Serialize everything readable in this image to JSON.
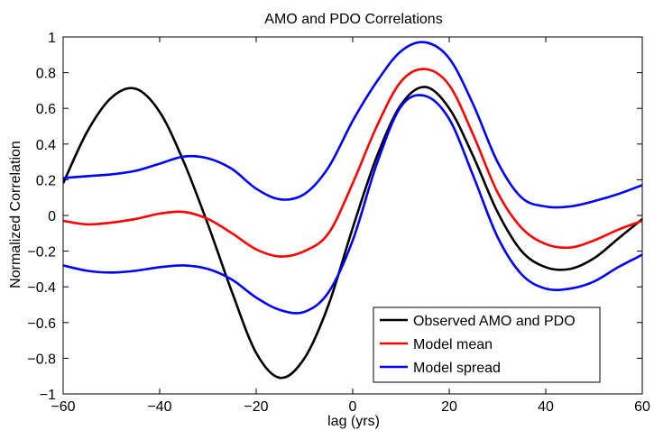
{
  "chart_data": {
    "type": "line",
    "title": "AMO and PDO Correlations",
    "xlabel": "lag (yrs)",
    "ylabel": "Normalized Correlation",
    "xlim": [
      -60,
      60
    ],
    "ylim": [
      -1,
      1
    ],
    "xticks": [
      -60,
      -40,
      -20,
      0,
      20,
      40,
      60
    ],
    "xtick_labels": [
      "−60",
      "−40",
      "−20",
      "0",
      "20",
      "40",
      "60"
    ],
    "yticks": [
      -1,
      -0.8,
      -0.6,
      -0.4,
      -0.2,
      0,
      0.2,
      0.4,
      0.6,
      0.8,
      1
    ],
    "ytick_labels": [
      "−1",
      "−0.8",
      "−0.6",
      "−0.4",
      "−0.2",
      "0",
      "0.2",
      "0.4",
      "0.6",
      "0.8",
      "1"
    ],
    "grid": false,
    "legend_position": "bottom-right",
    "legend": [
      {
        "label": "Observed AMO and PDO",
        "color": "#000000"
      },
      {
        "label": "Model mean",
        "color": "#ff0000"
      },
      {
        "label": "Model spread",
        "color": "#0000ff"
      }
    ],
    "series": [
      {
        "name": "Observed AMO and PDO",
        "color": "#000000",
        "x": [
          -60,
          -55,
          -50,
          -45,
          -40,
          -35,
          -30,
          -25,
          -20,
          -15,
          -10,
          -5,
          0,
          5,
          10,
          15,
          20,
          25,
          30,
          35,
          40,
          45,
          50,
          55,
          60
        ],
        "y": [
          0.18,
          0.47,
          0.66,
          0.71,
          0.58,
          0.3,
          -0.05,
          -0.43,
          -0.77,
          -0.91,
          -0.8,
          -0.5,
          -0.07,
          0.33,
          0.62,
          0.72,
          0.6,
          0.33,
          0.02,
          -0.2,
          -0.29,
          -0.3,
          -0.24,
          -0.13,
          -0.02
        ]
      },
      {
        "name": "Model mean",
        "color": "#ff0000",
        "x": [
          -60,
          -55,
          -50,
          -45,
          -40,
          -35,
          -30,
          -25,
          -20,
          -15,
          -10,
          -5,
          0,
          5,
          10,
          15,
          20,
          25,
          30,
          35,
          40,
          45,
          50,
          55,
          60
        ],
        "y": [
          -0.03,
          -0.05,
          -0.04,
          -0.02,
          0.01,
          0.02,
          -0.02,
          -0.1,
          -0.19,
          -0.23,
          -0.2,
          -0.1,
          0.18,
          0.5,
          0.75,
          0.82,
          0.73,
          0.45,
          0.13,
          -0.07,
          -0.16,
          -0.18,
          -0.14,
          -0.08,
          -0.03
        ]
      },
      {
        "name": "Model spread (upper)",
        "color": "#0000ff",
        "x": [
          -60,
          -55,
          -50,
          -45,
          -40,
          -35,
          -30,
          -25,
          -20,
          -15,
          -10,
          -5,
          0,
          5,
          10,
          15,
          20,
          25,
          30,
          35,
          40,
          45,
          50,
          55,
          60
        ],
        "y": [
          0.21,
          0.22,
          0.23,
          0.25,
          0.29,
          0.33,
          0.32,
          0.26,
          0.15,
          0.09,
          0.12,
          0.27,
          0.53,
          0.75,
          0.92,
          0.97,
          0.88,
          0.62,
          0.3,
          0.1,
          0.05,
          0.05,
          0.08,
          0.12,
          0.17
        ]
      },
      {
        "name": "Model spread (lower)",
        "color": "#0000ff",
        "x": [
          -60,
          -55,
          -50,
          -45,
          -40,
          -35,
          -30,
          -25,
          -20,
          -15,
          -10,
          -5,
          0,
          5,
          10,
          15,
          20,
          25,
          30,
          35,
          40,
          45,
          50,
          55,
          60
        ],
        "y": [
          -0.28,
          -0.31,
          -0.32,
          -0.31,
          -0.29,
          -0.28,
          -0.3,
          -0.36,
          -0.46,
          -0.53,
          -0.54,
          -0.43,
          -0.14,
          0.29,
          0.61,
          0.67,
          0.54,
          0.22,
          -0.12,
          -0.33,
          -0.41,
          -0.41,
          -0.37,
          -0.29,
          -0.22
        ]
      }
    ]
  }
}
